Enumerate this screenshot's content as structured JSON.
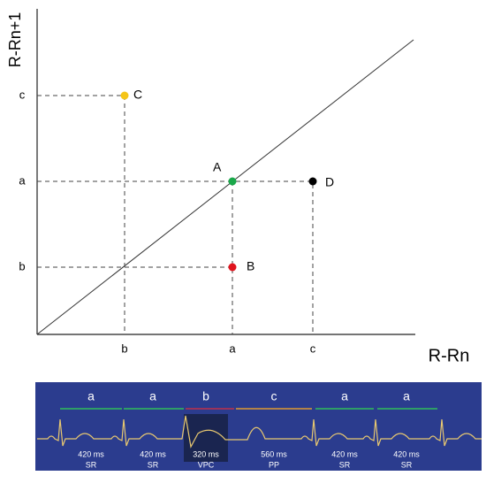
{
  "y_axis": {
    "label": "R-Rn+1",
    "ticks": [
      "c",
      "a",
      "b"
    ]
  },
  "x_axis": {
    "label": "R-Rn",
    "ticks": [
      "b",
      "a",
      "c"
    ]
  },
  "points": [
    {
      "label": "C"
    },
    {
      "label": "A"
    },
    {
      "label": "D"
    },
    {
      "label": "B"
    }
  ],
  "strip": {
    "segments": [
      {
        "letter": "a",
        "duration": "420 ms",
        "rhythm": "SR"
      },
      {
        "letter": "a",
        "duration": "420 ms",
        "rhythm": "SR"
      },
      {
        "letter": "b",
        "duration": "320 ms",
        "rhythm": "VPC"
      },
      {
        "letter": "c",
        "duration": "560 ms",
        "rhythm": "PP"
      },
      {
        "letter": "a",
        "duration": "420 ms",
        "rhythm": "SR"
      },
      {
        "letter": "a",
        "duration": "420 ms",
        "rhythm": "SR"
      }
    ]
  }
}
